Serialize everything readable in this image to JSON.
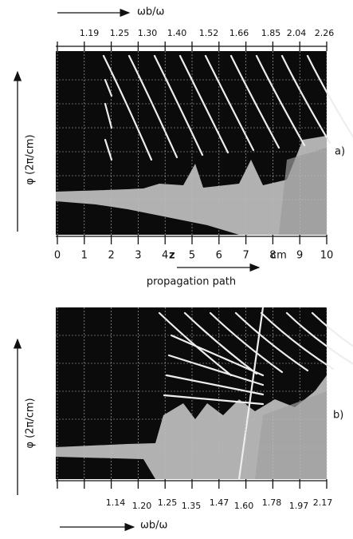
{
  "figure": {
    "panel_a": {
      "top_axis_label": "ωb/ω",
      "top_ticks": [
        "1.19",
        "1.25",
        "1.30",
        "1.40",
        "1.52",
        "1.66",
        "1.85",
        "2.04",
        "2.26"
      ],
      "y_label": "φ (2π/cm)",
      "panel_label": "a)",
      "z_ticks": [
        "0",
        "1",
        "2",
        "3",
        "4",
        "5",
        "6",
        "7",
        "8",
        "9",
        "10"
      ],
      "z_label": "z",
      "z_unit": "cm",
      "z_caption": "propagation path"
    },
    "panel_b": {
      "y_label": "φ (2π/cm)",
      "panel_label": "b)",
      "bottom_ticks": [
        "1.14",
        "1.20",
        "1.25",
        "1.35",
        "1.47",
        "1.60",
        "1.78",
        "1.97",
        "2.17"
      ],
      "bottom_axis_label": "ωb/ω"
    }
  }
}
